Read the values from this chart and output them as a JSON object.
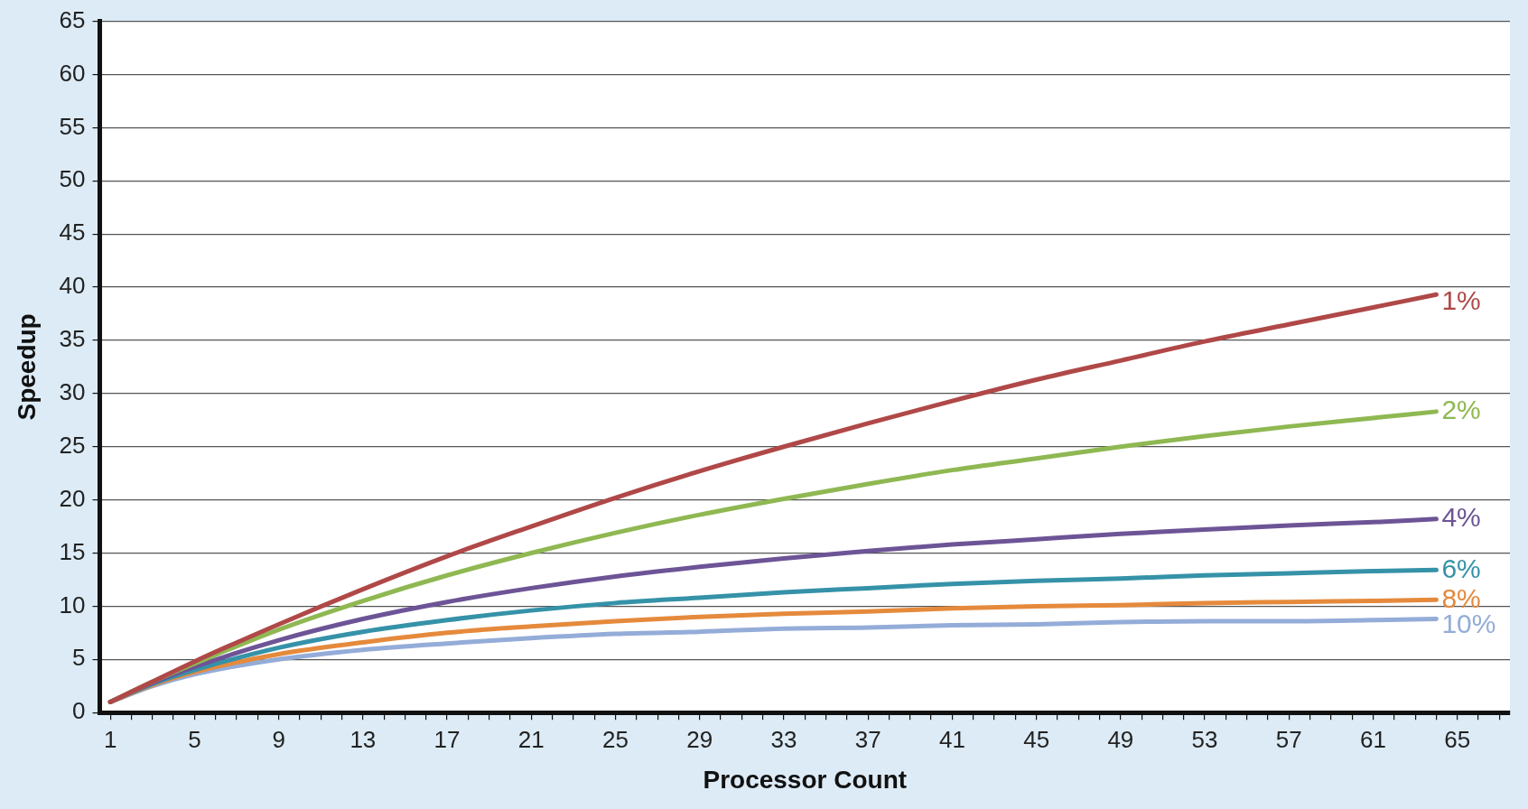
{
  "chart_data": {
    "type": "line",
    "xlabel": "Processor Count",
    "ylabel": "Speedup",
    "x": [
      1,
      3,
      5,
      9,
      13,
      17,
      21,
      25,
      29,
      33,
      37,
      41,
      45,
      49,
      53,
      57,
      61,
      64
    ],
    "series": [
      {
        "name": "1%",
        "color": "#b04848",
        "values": [
          1,
          2.9,
          4.8,
          8.3,
          11.6,
          14.7,
          17.5,
          20.2,
          22.7,
          25,
          27.2,
          29.3,
          31.3,
          33.1,
          34.9,
          36.5,
          38.1,
          39.3
        ]
      },
      {
        "name": "2%",
        "color": "#8fb852",
        "values": [
          1,
          2.9,
          4.6,
          7.8,
          10.5,
          12.9,
          15,
          16.9,
          18.6,
          20.1,
          21.5,
          22.8,
          23.9,
          25,
          26,
          26.9,
          27.7,
          28.3
        ]
      },
      {
        "name": "4%",
        "color": "#6d5496",
        "values": [
          1,
          2.8,
          4.3,
          6.8,
          8.8,
          10.4,
          11.7,
          12.8,
          13.7,
          14.5,
          15.2,
          15.8,
          16.3,
          16.8,
          17.2,
          17.6,
          17.9,
          18.2
        ]
      },
      {
        "name": "6%",
        "color": "#3592a8",
        "values": [
          1,
          2.7,
          4,
          6.1,
          7.6,
          8.7,
          9.6,
          10.3,
          10.8,
          11.3,
          11.7,
          12.1,
          12.4,
          12.6,
          12.9,
          13.1,
          13.3,
          13.4
        ]
      },
      {
        "name": "8%",
        "color": "#e58a3c",
        "values": [
          1,
          2.6,
          3.8,
          5.5,
          6.6,
          7.5,
          8.1,
          8.6,
          9,
          9.3,
          9.5,
          9.8,
          10,
          10.1,
          10.3,
          10.4,
          10.5,
          10.6
        ]
      },
      {
        "name": "10%",
        "color": "#94acd8",
        "values": [
          1,
          2.5,
          3.6,
          5,
          5.9,
          6.5,
          7,
          7.4,
          7.6,
          7.9,
          8,
          8.2,
          8.3,
          8.5,
          8.6,
          8.6,
          8.7,
          8.8
        ]
      }
    ],
    "xlim": [
      0.5,
      67.5
    ],
    "xticks": [
      1,
      {
        "value": 2,
        "label": null
      },
      {
        "value": 3,
        "label": null
      },
      {
        "value": 4,
        "label": null
      },
      5,
      {
        "value": 6,
        "label": null
      },
      {
        "value": 7,
        "label": null
      },
      {
        "value": 8,
        "label": null
      },
      9,
      {
        "value": 10,
        "label": null
      },
      {
        "value": 11,
        "label": null
      },
      {
        "value": 12,
        "label": null
      },
      13,
      {
        "value": 14,
        "label": null
      },
      {
        "value": 15,
        "label": null
      },
      {
        "value": 16,
        "label": null
      },
      17,
      {
        "value": 18,
        "label": null
      },
      {
        "value": 19,
        "label": null
      },
      {
        "value": 20,
        "label": null
      },
      21,
      {
        "value": 22,
        "label": null
      },
      {
        "value": 23,
        "label": null
      },
      {
        "value": 24,
        "label": null
      },
      25,
      {
        "value": 26,
        "label": null
      },
      {
        "value": 27,
        "label": null
      },
      {
        "value": 28,
        "label": null
      },
      29,
      {
        "value": 30,
        "label": null
      },
      {
        "value": 31,
        "label": null
      },
      {
        "value": 32,
        "label": null
      },
      33,
      {
        "value": 34,
        "label": null
      },
      {
        "value": 35,
        "label": null
      },
      {
        "value": 36,
        "label": null
      },
      37,
      {
        "value": 38,
        "label": null
      },
      {
        "value": 39,
        "label": null
      },
      {
        "value": 40,
        "label": null
      },
      41,
      {
        "value": 42,
        "label": null
      },
      {
        "value": 43,
        "label": null
      },
      {
        "value": 44,
        "label": null
      },
      45,
      {
        "value": 46,
        "label": null
      },
      {
        "value": 47,
        "label": null
      },
      {
        "value": 48,
        "label": null
      },
      49,
      {
        "value": 50,
        "label": null
      },
      {
        "value": 51,
        "label": null
      },
      {
        "value": 52,
        "label": null
      },
      53,
      {
        "value": 54,
        "label": null
      },
      {
        "value": 55,
        "label": null
      },
      {
        "value": 56,
        "label": null
      },
      57,
      {
        "value": 58,
        "label": null
      },
      {
        "value": 59,
        "label": null
      },
      {
        "value": 60,
        "label": null
      },
      61,
      {
        "value": 62,
        "label": null
      },
      {
        "value": 63,
        "label": null
      },
      {
        "value": 64,
        "label": null
      },
      65,
      {
        "value": 66,
        "label": null
      },
      {
        "value": 67,
        "label": null
      }
    ],
    "ylim": [
      0,
      65
    ],
    "yticks": [
      0,
      5,
      10,
      15,
      20,
      25,
      30,
      35,
      40,
      45,
      50,
      55,
      60,
      65
    ],
    "grid": "y",
    "marker": "none",
    "line_style": "solid"
  }
}
